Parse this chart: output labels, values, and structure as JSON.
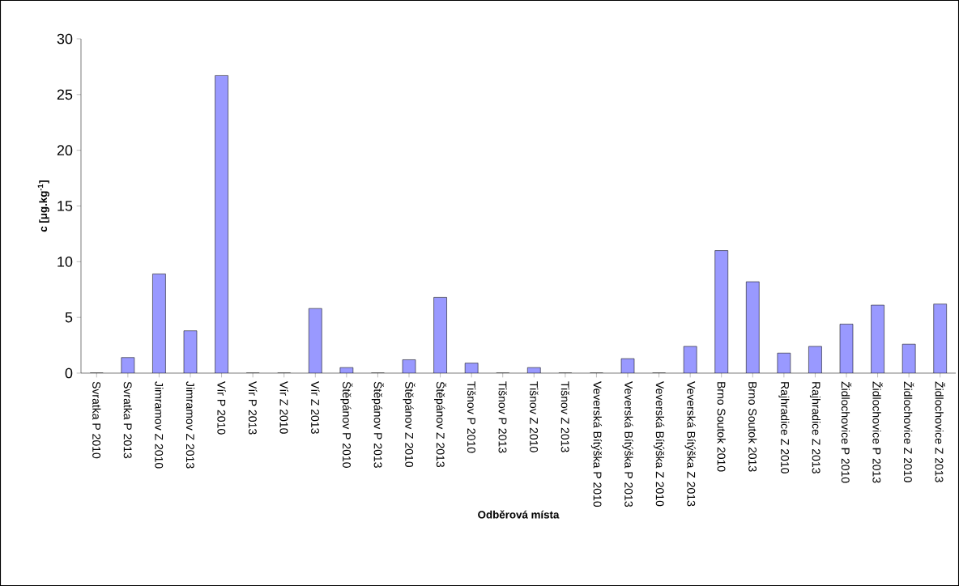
{
  "chart_data": {
    "type": "bar",
    "xlabel": "Odběrová místa",
    "ylabel": "c [μg.kg$^{-1}$]",
    "categories": [
      "Svratka P 2010",
      "Svratka P 2013",
      "Jimramov Z 2010",
      "Jimramov Z 2013",
      "Vír P 2010",
      "Vír P 2013",
      "Vír Z 2010",
      "Vír Z 2013",
      "Štěpánov P 2010",
      "Štěpánov P 2013",
      "Štěpánov Z 2010",
      "Štěpánov Z 2013",
      "Tišnov P 2010",
      "Tišnov P 2013",
      "Tišnov Z 2010",
      "Tišnov Z 2013",
      "Veverská Bítýška P 2010",
      "Veverská Bítýška P 2013",
      "Veverská Bítýška Z 2010",
      "Veverská Bítýška Z 2013",
      "Brno Soutok 2010",
      "Brno Soutok 2013",
      "Rajhradice Z 2010",
      "Rajhradice Z 2013",
      "Židlochovice P 2010",
      "Židlochovice P 2013",
      "Židlochovice Z 2010",
      "Židlochovice Z 2013"
    ],
    "values": [
      0,
      1.4,
      8.9,
      3.8,
      26.7,
      0,
      0,
      5.8,
      0.5,
      0,
      1.2,
      6.8,
      0.9,
      0,
      0.5,
      0,
      0,
      1.3,
      0,
      2.4,
      11.0,
      8.2,
      1.8,
      2.4,
      4.4,
      6.1,
      2.6,
      6.2
    ],
    "color": "#9999ff",
    "ylim": [
      0,
      30
    ],
    "yticks": [
      0,
      5,
      10,
      15,
      20,
      25,
      30
    ],
    "grid": false
  }
}
